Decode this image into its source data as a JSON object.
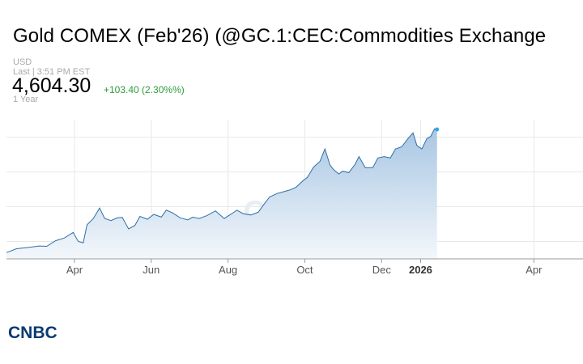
{
  "header": {
    "title": "Gold COMEX (Feb'26) (@GC.1:CEC:Commodities Exchange",
    "currency": "USD",
    "last_label": "Last | 3:51 PM EST",
    "price": "4,604.30",
    "change": "+103.40 (2.30%%)",
    "range": "1 Year"
  },
  "brand": {
    "logo_text": "CNBC",
    "watermark_text": "CNBC"
  },
  "colors": {
    "line": "#2f6fa8",
    "fill_top": "#a8c6e3",
    "fill_bottom": "#f3f7fb",
    "grid": "#e8e8e8",
    "marker": "#2aa9ee",
    "positive": "#2e9b3a"
  },
  "chart_data": {
    "type": "area",
    "title": "Gold COMEX (Feb'26) (@GC.1:CEC:Commodities Exchange",
    "xlabel": "",
    "ylabel": "",
    "grid": true,
    "legend": "none",
    "x_ticks": [
      {
        "label": "Apr",
        "date": "2025-04-01",
        "bold": false
      },
      {
        "label": "Jun",
        "date": "2025-06-01",
        "bold": false
      },
      {
        "label": "Aug",
        "date": "2025-08-01",
        "bold": false
      },
      {
        "label": "Oct",
        "date": "2025-10-01",
        "bold": false
      },
      {
        "label": "Dec",
        "date": "2025-12-01",
        "bold": false
      },
      {
        "label": "2026",
        "date": "2026-01-01",
        "bold": true
      },
      {
        "label": "Apr",
        "date": "2026-04-01",
        "bold": false
      }
    ],
    "xlim": [
      "2025-02-06",
      "2026-05-10"
    ],
    "ylim": [
      2750,
      4750
    ],
    "series": [
      {
        "points": [
          [
            "2025-02-06",
            2840
          ],
          [
            "2025-02-14",
            2895
          ],
          [
            "2025-02-24",
            2915
          ],
          [
            "2025-03-04",
            2935
          ],
          [
            "2025-03-10",
            2930
          ],
          [
            "2025-03-17",
            3010
          ],
          [
            "2025-03-24",
            3050
          ],
          [
            "2025-03-31",
            3130
          ],
          [
            "2025-04-04",
            3000
          ],
          [
            "2025-04-08",
            2980
          ],
          [
            "2025-04-11",
            3240
          ],
          [
            "2025-04-16",
            3330
          ],
          [
            "2025-04-21",
            3480
          ],
          [
            "2025-04-25",
            3330
          ],
          [
            "2025-04-30",
            3300
          ],
          [
            "2025-05-05",
            3340
          ],
          [
            "2025-05-09",
            3345
          ],
          [
            "2025-05-14",
            3180
          ],
          [
            "2025-05-19",
            3230
          ],
          [
            "2025-05-23",
            3360
          ],
          [
            "2025-05-29",
            3320
          ],
          [
            "2025-06-03",
            3390
          ],
          [
            "2025-06-09",
            3350
          ],
          [
            "2025-06-13",
            3450
          ],
          [
            "2025-06-18",
            3410
          ],
          [
            "2025-06-24",
            3340
          ],
          [
            "2025-06-30",
            3310
          ],
          [
            "2025-07-04",
            3350
          ],
          [
            "2025-07-09",
            3330
          ],
          [
            "2025-07-15",
            3370
          ],
          [
            "2025-07-22",
            3440
          ],
          [
            "2025-07-29",
            3330
          ],
          [
            "2025-08-04",
            3400
          ],
          [
            "2025-08-08",
            3450
          ],
          [
            "2025-08-13",
            3400
          ],
          [
            "2025-08-19",
            3380
          ],
          [
            "2025-08-25",
            3420
          ],
          [
            "2025-08-29",
            3520
          ],
          [
            "2025-09-03",
            3640
          ],
          [
            "2025-09-09",
            3690
          ],
          [
            "2025-09-15",
            3720
          ],
          [
            "2025-09-19",
            3740
          ],
          [
            "2025-09-24",
            3780
          ],
          [
            "2025-09-30",
            3880
          ],
          [
            "2025-10-03",
            3920
          ],
          [
            "2025-10-08",
            4070
          ],
          [
            "2025-10-13",
            4150
          ],
          [
            "2025-10-17",
            4330
          ],
          [
            "2025-10-21",
            4100
          ],
          [
            "2025-10-24",
            4030
          ],
          [
            "2025-10-28",
            3970
          ],
          [
            "2025-10-31",
            4010
          ],
          [
            "2025-11-05",
            3990
          ],
          [
            "2025-11-10",
            4110
          ],
          [
            "2025-11-13",
            4220
          ],
          [
            "2025-11-18",
            4060
          ],
          [
            "2025-11-24",
            4060
          ],
          [
            "2025-11-28",
            4200
          ],
          [
            "2025-12-03",
            4220
          ],
          [
            "2025-12-08",
            4200
          ],
          [
            "2025-12-12",
            4330
          ],
          [
            "2025-12-17",
            4360
          ],
          [
            "2025-12-22",
            4480
          ],
          [
            "2025-12-26",
            4560
          ],
          [
            "2025-12-29",
            4380
          ],
          [
            "2026-01-02",
            4330
          ],
          [
            "2026-01-06",
            4480
          ],
          [
            "2026-01-09",
            4510
          ],
          [
            "2026-01-12",
            4620
          ],
          [
            "2026-01-14",
            4610
          ]
        ]
      }
    ],
    "last_point": [
      "2026-01-14",
      4610
    ]
  }
}
